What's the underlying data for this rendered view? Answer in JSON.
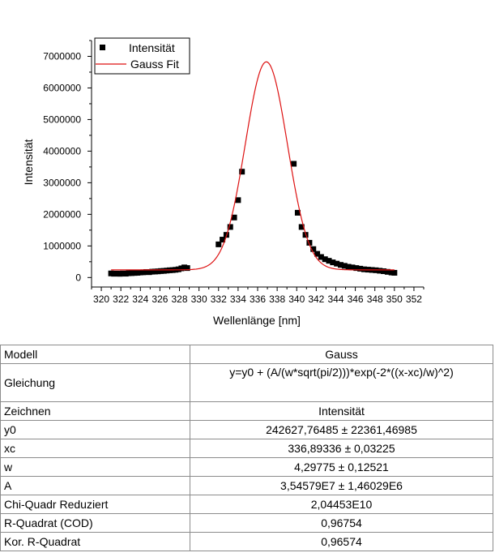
{
  "chart_data": {
    "type": "scatter",
    "xlabel": "Wellenlänge [nm]",
    "ylabel": "Intensität",
    "xlim": [
      319,
      353
    ],
    "ylim": [
      -300000,
      7500000
    ],
    "x_ticks": [
      "320",
      "322",
      "324",
      "326",
      "328",
      "330",
      "332",
      "334",
      "336",
      "338",
      "340",
      "342",
      "344",
      "346",
      "348",
      "350",
      "352"
    ],
    "y_ticks": [
      "0",
      "1000000",
      "2000000",
      "3000000",
      "4000000",
      "5000000",
      "6000000",
      "7000000"
    ],
    "legend_position": "top-left",
    "series": [
      {
        "name": "Intensität",
        "kind": "scatter",
        "marker": "square",
        "color": "#000000",
        "points": [
          [
            321.0,
            130000
          ],
          [
            321.3,
            120000
          ],
          [
            321.6,
            125000
          ],
          [
            321.9,
            118000
          ],
          [
            322.2,
            128000
          ],
          [
            322.5,
            122000
          ],
          [
            322.8,
            135000
          ],
          [
            323.1,
            140000
          ],
          [
            323.4,
            145000
          ],
          [
            323.7,
            150000
          ],
          [
            324.0,
            160000
          ],
          [
            324.3,
            165000
          ],
          [
            324.6,
            175000
          ],
          [
            324.9,
            170000
          ],
          [
            325.2,
            185000
          ],
          [
            325.5,
            190000
          ],
          [
            325.8,
            195000
          ],
          [
            326.1,
            205000
          ],
          [
            326.4,
            210000
          ],
          [
            326.7,
            220000
          ],
          [
            327.0,
            230000
          ],
          [
            327.3,
            235000
          ],
          [
            327.6,
            245000
          ],
          [
            327.9,
            260000
          ],
          [
            328.2,
            290000
          ],
          [
            328.5,
            320000
          ],
          [
            328.8,
            300000
          ],
          [
            332.0,
            1050000
          ],
          [
            332.4,
            1200000
          ],
          [
            332.8,
            1350000
          ],
          [
            333.2,
            1600000
          ],
          [
            333.6,
            1900000
          ],
          [
            334.0,
            2450000
          ],
          [
            334.4,
            3350000
          ],
          [
            339.7,
            3600000
          ],
          [
            340.1,
            2050000
          ],
          [
            340.5,
            1600000
          ],
          [
            340.9,
            1350000
          ],
          [
            341.3,
            1100000
          ],
          [
            341.7,
            900000
          ],
          [
            342.1,
            750000
          ],
          [
            342.5,
            650000
          ],
          [
            342.9,
            580000
          ],
          [
            343.3,
            530000
          ],
          [
            343.7,
            480000
          ],
          [
            344.1,
            440000
          ],
          [
            344.5,
            400000
          ],
          [
            344.9,
            370000
          ],
          [
            345.3,
            340000
          ],
          [
            345.7,
            320000
          ],
          [
            346.1,
            300000
          ],
          [
            346.5,
            280000
          ],
          [
            346.9,
            260000
          ],
          [
            347.3,
            250000
          ],
          [
            347.7,
            240000
          ],
          [
            348.1,
            230000
          ],
          [
            348.5,
            215000
          ],
          [
            348.9,
            200000
          ],
          [
            349.3,
            180000
          ],
          [
            349.7,
            160000
          ],
          [
            350.0,
            150000
          ]
        ]
      },
      {
        "name": "Gauss Fit",
        "kind": "line",
        "color": "#dd1111",
        "model": {
          "y0": 242627.76485,
          "xc": 336.89336,
          "w": 4.29775,
          "A": 35457900
        },
        "x_range": [
          321,
          350
        ]
      }
    ]
  },
  "results_table": {
    "rows": [
      {
        "key": "Modell",
        "value": "Gauss"
      },
      {
        "key": "Gleichung",
        "value": "y=y0 + (A/(w*sqrt(pi/2)))*exp(-2*((x-xc)/w)^2)"
      },
      {
        "key": "Zeichnen",
        "value": "Intensität"
      },
      {
        "key": "y0",
        "value": "242627,76485 ± 22361,46985"
      },
      {
        "key": "xc",
        "value": "336,89336 ± 0,03225"
      },
      {
        "key": "w",
        "value": "4,29775 ± 0,12521"
      },
      {
        "key": "A",
        "value": "3,54579E7 ± 1,46029E6"
      },
      {
        "key": "Chi-Quadr Reduziert",
        "value": "2,04453E10"
      },
      {
        "key": "R-Quadrat (COD)",
        "value": "0,96754"
      },
      {
        "key": "Kor. R-Quadrat",
        "value": "0,96574"
      }
    ]
  }
}
